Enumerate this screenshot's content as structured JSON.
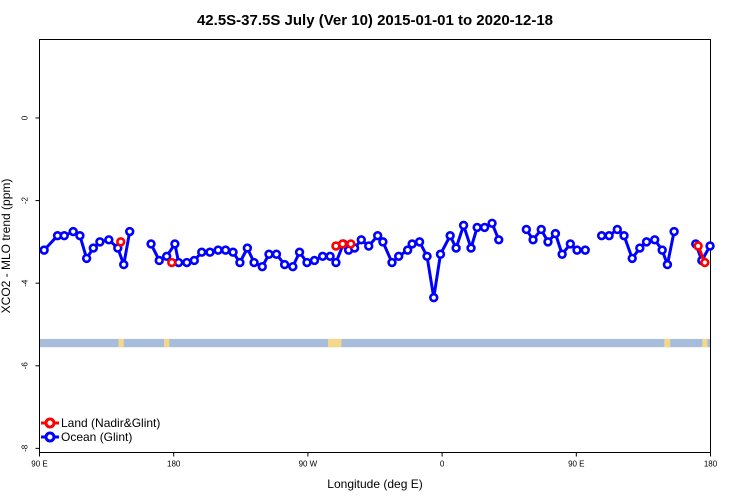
{
  "chart_data": {
    "type": "line",
    "title": "42.5S-37.5S July (Ver 10)   2015-01-01 to 2020-12-18",
    "xlabel": "Longitude (deg E)",
    "ylabel": "XCO2 - MLO trend (ppm)",
    "x_ticks": [
      {
        "value": 90,
        "label": "90 E"
      },
      {
        "value": 180,
        "label": "180"
      },
      {
        "value": 270,
        "label": "90 W"
      },
      {
        "value": 360,
        "label": "0"
      },
      {
        "value": 450,
        "label": "90 E"
      },
      {
        "value": 540,
        "label": "180"
      }
    ],
    "y_ticks": [
      {
        "value": 0,
        "label": "0"
      },
      {
        "value": -2,
        "label": "-2"
      },
      {
        "value": -4,
        "label": "-4"
      },
      {
        "value": -6,
        "label": "-6"
      },
      {
        "value": -8,
        "label": "-8"
      }
    ],
    "xlim": [
      90,
      540
    ],
    "ylim": [
      -8.1,
      1.9
    ],
    "legend_position": "bottom-left",
    "series": [
      {
        "name": "Land (Nadir&Glint)",
        "color": "#ff0000",
        "points": [
          [
            144.5,
            -3.0
          ],
          [
            178.7,
            -3.5
          ],
          [
            288.8,
            -3.1
          ],
          [
            293.3,
            -3.05
          ],
          [
            298.8,
            -3.05
          ],
          [
            531.7,
            -3.1
          ],
          [
            536.2,
            -3.5
          ]
        ]
      },
      {
        "name": "Ocean (Glint)",
        "color": "#0000ff",
        "points": [
          [
            93.1,
            -3.2
          ],
          [
            102.1,
            -2.85
          ],
          [
            106.6,
            -2.85
          ],
          [
            112.6,
            -2.75
          ],
          [
            117.1,
            -2.85
          ],
          [
            121.6,
            -3.4
          ],
          [
            126.1,
            -3.15
          ],
          [
            130.5,
            -3.0
          ],
          [
            136.5,
            -2.95
          ],
          [
            142.5,
            -3.15
          ],
          [
            146.5,
            -3.55
          ],
          [
            150.5,
            -2.75
          ],
          [
            164.8,
            -3.05
          ],
          [
            170.3,
            -3.45
          ],
          [
            175.3,
            -3.35
          ],
          [
            180.8,
            -3.05
          ],
          [
            183.3,
            -3.5
          ],
          [
            188.8,
            -3.5
          ],
          [
            193.8,
            -3.45
          ],
          [
            198.8,
            -3.25
          ],
          [
            204.3,
            -3.25
          ],
          [
            209.8,
            -3.2
          ],
          [
            214.8,
            -3.2
          ],
          [
            219.8,
            -3.25
          ],
          [
            224.4,
            -3.5
          ],
          [
            229.4,
            -3.15
          ],
          [
            233.9,
            -3.5
          ],
          [
            239.4,
            -3.6
          ],
          [
            243.9,
            -3.3
          ],
          [
            248.9,
            -3.3
          ],
          [
            254.4,
            -3.55
          ],
          [
            259.9,
            -3.6
          ],
          [
            264.4,
            -3.25
          ],
          [
            269.4,
            -3.5
          ],
          [
            274.4,
            -3.45
          ],
          [
            279.9,
            -3.35
          ],
          [
            284.9,
            -3.35
          ],
          [
            288.8,
            -3.5
          ],
          [
            293.8,
            -3.05
          ],
          [
            297.3,
            -3.2
          ],
          [
            301.3,
            -3.15
          ],
          [
            305.8,
            -2.95
          ],
          [
            310.8,
            -3.1
          ],
          [
            316.8,
            -2.85
          ],
          [
            320.3,
            -3.0
          ],
          [
            326.4,
            -3.5
          ],
          [
            330.9,
            -3.35
          ],
          [
            336.9,
            -3.2
          ],
          [
            339.9,
            -3.05
          ],
          [
            344.9,
            -3.0
          ],
          [
            349.9,
            -3.35
          ],
          [
            354.4,
            -4.35
          ],
          [
            358.9,
            -3.3
          ],
          [
            365.4,
            -2.85
          ],
          [
            369.4,
            -3.15
          ],
          [
            374.4,
            -2.6
          ],
          [
            379.4,
            -3.15
          ],
          [
            383.5,
            -2.65
          ],
          [
            388.5,
            -2.65
          ],
          [
            393.5,
            -2.55
          ],
          [
            398.0,
            -2.95
          ],
          [
            416.5,
            -2.7
          ],
          [
            421.0,
            -2.95
          ],
          [
            426.5,
            -2.7
          ],
          [
            431.0,
            -3.0
          ],
          [
            436.0,
            -2.8
          ],
          [
            440.5,
            -3.3
          ],
          [
            446.0,
            -3.05
          ],
          [
            450.5,
            -3.2
          ],
          [
            456.0,
            -3.2
          ],
          [
            467.0,
            -2.85
          ],
          [
            472.0,
            -2.85
          ],
          [
            477.5,
            -2.7
          ],
          [
            482.0,
            -2.85
          ],
          [
            487.5,
            -3.4
          ],
          [
            492.6,
            -3.15
          ],
          [
            497.1,
            -3.0
          ],
          [
            502.6,
            -2.95
          ],
          [
            507.6,
            -3.2
          ],
          [
            511.1,
            -3.55
          ],
          [
            515.6,
            -2.75
          ],
          [
            530.1,
            -3.05
          ],
          [
            534.2,
            -3.45
          ],
          [
            539.7,
            -3.1
          ]
        ]
      }
    ],
    "surface_band": {
      "y_top": -5.35,
      "y_bottom": -5.55,
      "ocean_color": "#a6bddb",
      "land_color": "#f5d78a",
      "land_segments": [
        [
          143.0,
          146.5
        ],
        [
          173.5,
          177.0
        ],
        [
          283.5,
          292.5
        ],
        [
          509.0,
          513.0
        ],
        [
          534.5,
          538.0
        ]
      ]
    }
  }
}
